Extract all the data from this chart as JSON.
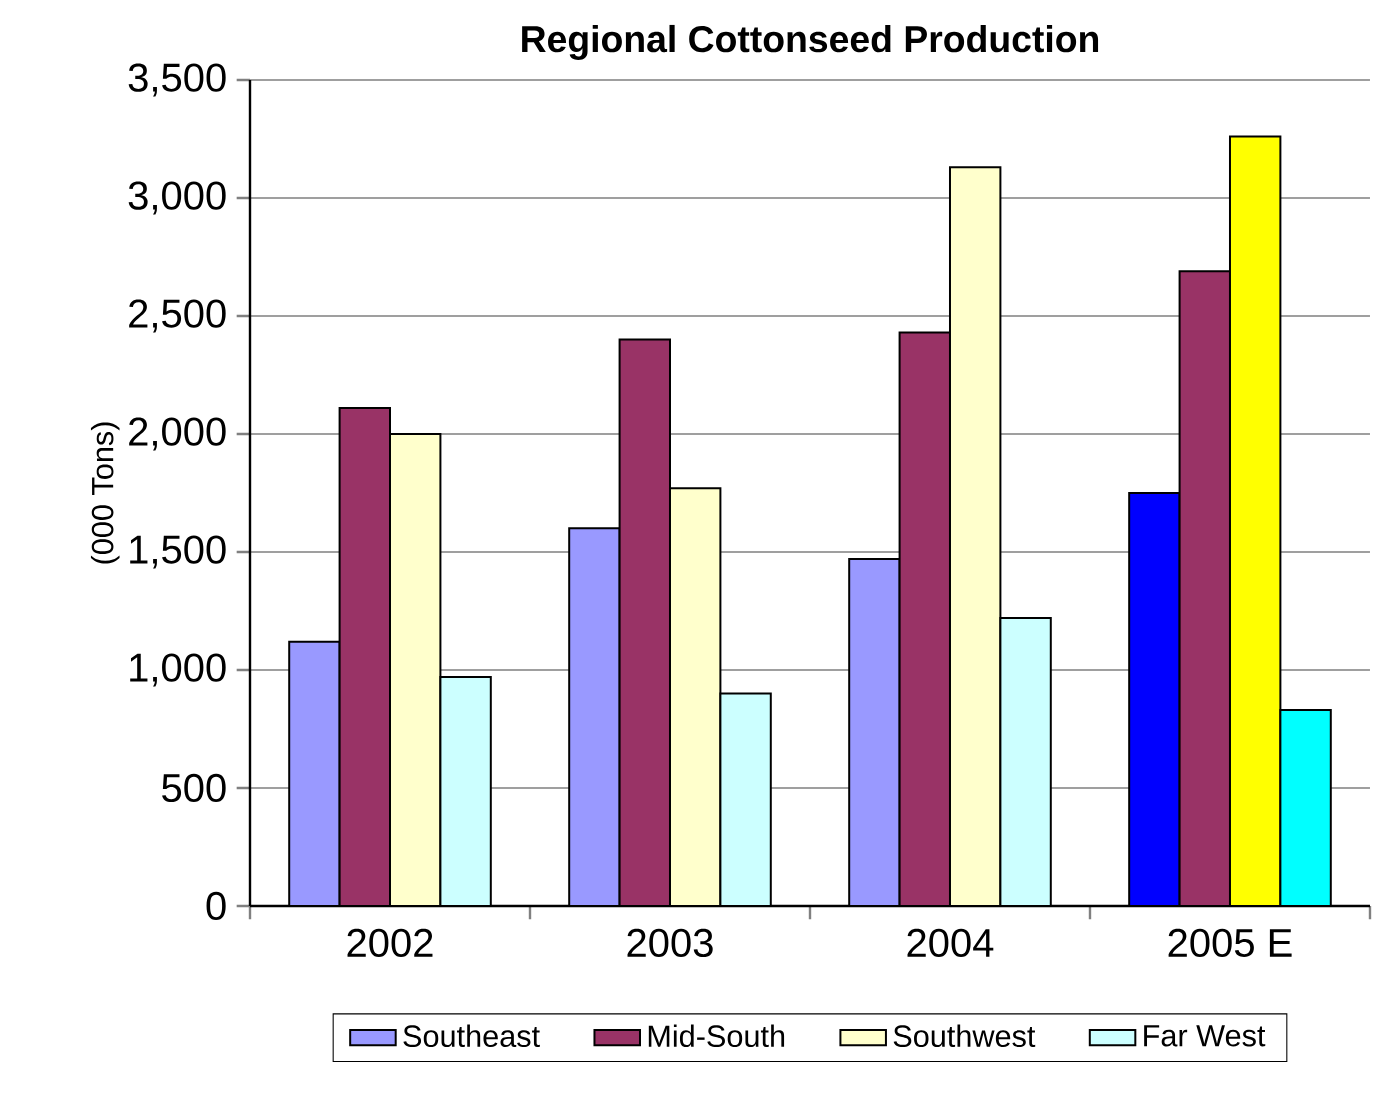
{
  "chart_data": {
    "type": "bar",
    "title": "Regional Cottonseed Production",
    "ylabel": "(000 Tons)",
    "categories": [
      "2002",
      "2003",
      "2004",
      "2005 E"
    ],
    "series": [
      {
        "name": "Southeast",
        "color": "#9999ff",
        "colors": [
          "#9999ff",
          "#9999ff",
          "#9999ff",
          "#0000ff"
        ],
        "values": [
          1120,
          1600,
          1470,
          1750
        ]
      },
      {
        "name": "Mid-South",
        "color": "#993366",
        "colors": [
          "#993366",
          "#993366",
          "#993366",
          "#993366"
        ],
        "values": [
          2110,
          2400,
          2430,
          2690
        ]
      },
      {
        "name": "Southwest",
        "color": "#ffffcc",
        "colors": [
          "#ffffcc",
          "#ffffcc",
          "#ffffcc",
          "#ffff00"
        ],
        "values": [
          2000,
          1770,
          3130,
          3260
        ]
      },
      {
        "name": "Far West",
        "color": "#ccffff",
        "colors": [
          "#ccffff",
          "#ccffff",
          "#ccffff",
          "#00ffff"
        ],
        "values": [
          970,
          900,
          1220,
          830
        ]
      }
    ],
    "ylim": [
      0,
      3500
    ],
    "yticks": [
      0,
      {
        "value": 500,
        "label": "500"
      },
      {
        "value": 1000,
        "label": "1,000"
      },
      {
        "value": 1500,
        "label": "1,500"
      },
      {
        "value": 2000,
        "label": "2,000"
      },
      {
        "value": 2500,
        "label": "2,500"
      },
      {
        "value": 3000,
        "label": "3,000"
      },
      {
        "value": 3500,
        "label": "3,500"
      }
    ],
    "grid": "y",
    "legend": "bottom"
  }
}
